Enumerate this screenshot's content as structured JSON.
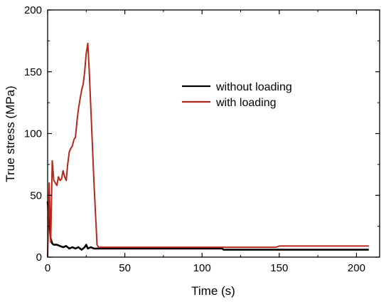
{
  "chart_data": {
    "type": "line",
    "title": "",
    "xlabel": "Time (s)",
    "ylabel": "True stress (MPa)",
    "xlim": [
      0,
      215
    ],
    "ylim": [
      0,
      200
    ],
    "xticks": [
      0,
      50,
      100,
      150,
      200
    ],
    "yticks": [
      0,
      50,
      100,
      150,
      200
    ],
    "grid": false,
    "legend_position": "upper-right",
    "series": [
      {
        "name": "without loading",
        "color": "#000000",
        "x": [
          0,
          1,
          2,
          3,
          4,
          6,
          8,
          10,
          12,
          14,
          16,
          18,
          20,
          22,
          24,
          25,
          26,
          28,
          30,
          32,
          40,
          60,
          80,
          100,
          113,
          114,
          130,
          148,
          208
        ],
        "y": [
          45,
          30,
          15,
          11,
          10,
          10,
          9,
          8,
          9,
          7,
          8,
          7,
          8,
          6,
          8,
          10,
          7,
          8,
          7,
          7,
          7,
          7,
          7,
          7,
          7,
          6,
          6,
          6,
          6
        ]
      },
      {
        "name": "with loading",
        "color": "#b5271d",
        "x": [
          0,
          1,
          2,
          3,
          4,
          5,
          6,
          7,
          8,
          9,
          10,
          11,
          12,
          13,
          14,
          15,
          16,
          17,
          18,
          19,
          20,
          21,
          22,
          23,
          24,
          25,
          26,
          27,
          28,
          30,
          32,
          33,
          40,
          60,
          80,
          100,
          120,
          148,
          150,
          208
        ],
        "y": [
          0,
          60,
          12,
          78,
          62,
          60,
          58,
          65,
          62,
          63,
          70,
          65,
          62,
          75,
          85,
          88,
          90,
          95,
          97,
          110,
          120,
          128,
          135,
          140,
          150,
          165,
          173,
          150,
          120,
          60,
          10,
          8,
          8,
          8,
          8,
          8,
          8,
          8,
          9,
          9
        ]
      }
    ]
  }
}
